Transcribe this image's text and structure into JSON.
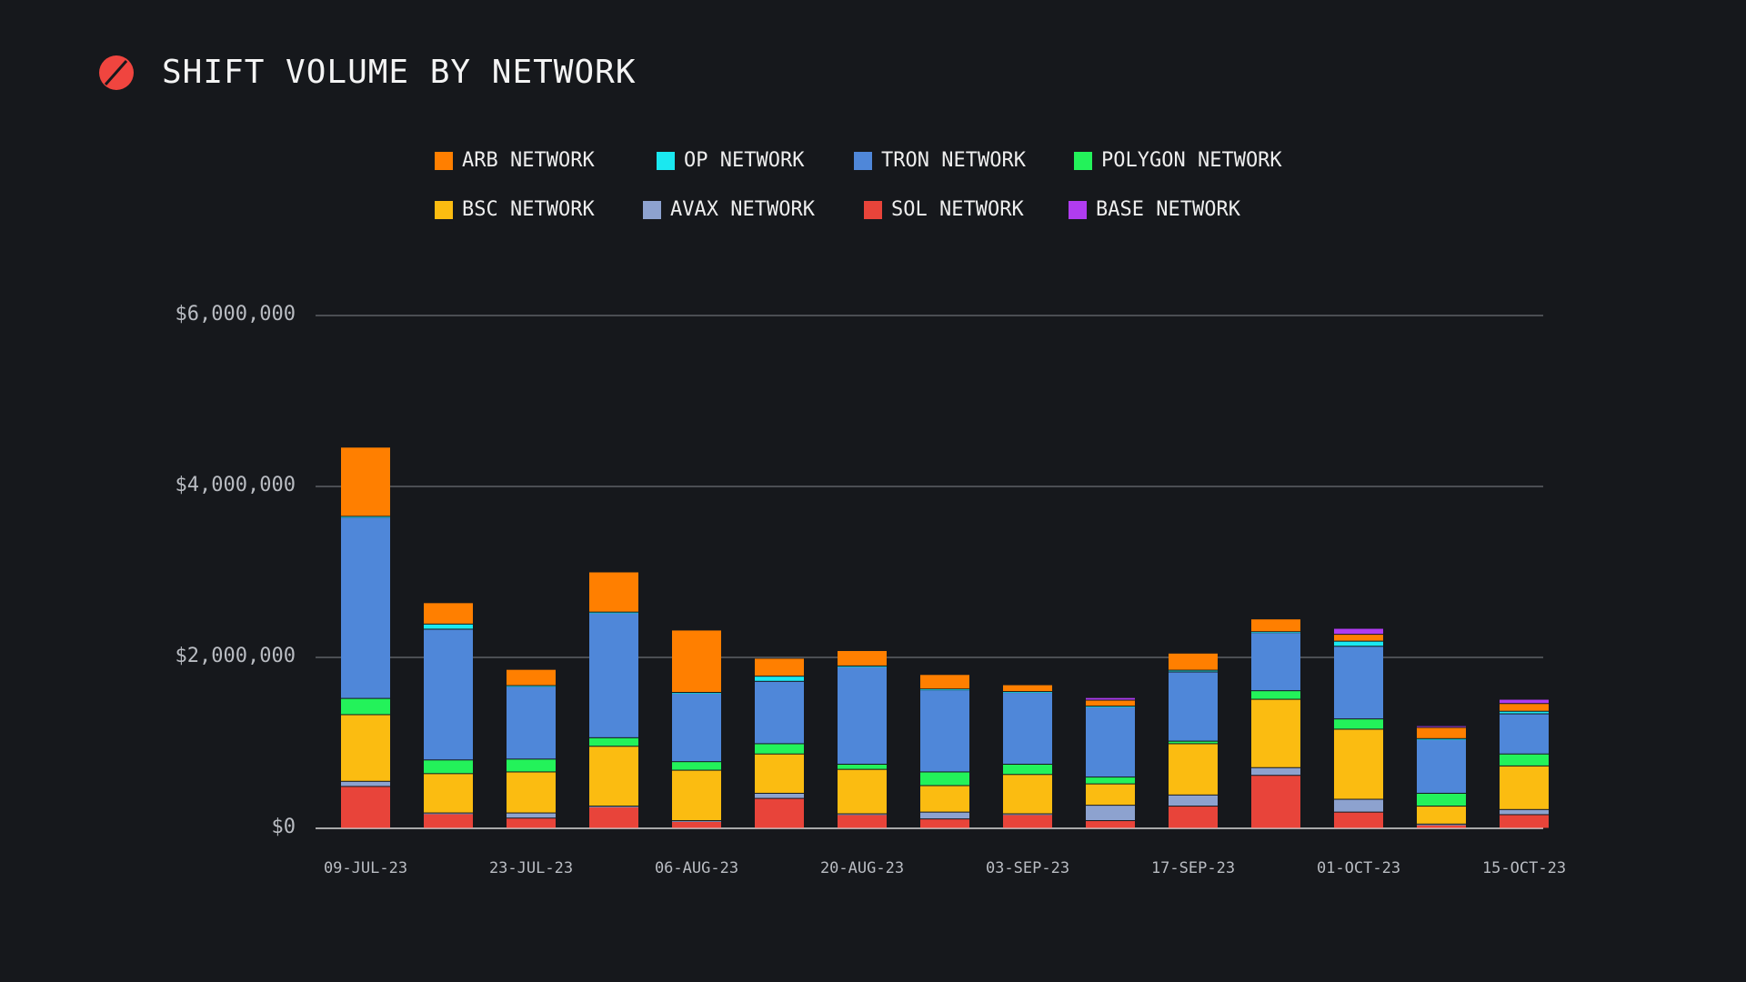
{
  "header": {
    "title": "SHIFT VOLUME BY NETWORK",
    "logo_color": "#f0453f"
  },
  "chart_data": {
    "type": "bar",
    "stacked": true,
    "title": "SHIFT VOLUME BY NETWORK",
    "xlabel": "",
    "ylabel": "",
    "ylim": [
      0,
      6000000
    ],
    "yticks": [
      0,
      2000000,
      4000000,
      6000000
    ],
    "ytick_labels": [
      "$0",
      "$2,000,000",
      "$4,000,000",
      "$6,000,000"
    ],
    "grid": true,
    "legend_position": "top",
    "categories": [
      "09-JUL-23",
      "16-JUL-23",
      "23-JUL-23",
      "30-JUL-23",
      "06-AUG-23",
      "13-AUG-23",
      "20-AUG-23",
      "27-AUG-23",
      "03-SEP-23",
      "10-SEP-23",
      "17-SEP-23",
      "24-SEP-23",
      "01-OCT-23",
      "08-OCT-23",
      "15-OCT-23"
    ],
    "xtick_labels": [
      "09-JUL-23",
      "",
      "23-JUL-23",
      "",
      "06-AUG-23",
      "",
      "20-AUG-23",
      "",
      "03-SEP-23",
      "",
      "17-SEP-23",
      "",
      "01-OCT-23",
      "",
      "15-OCT-23"
    ],
    "series": [
      {
        "name": "SOL NETWORK",
        "color": "#e8443a",
        "values": [
          490000,
          170000,
          120000,
          250000,
          80000,
          350000,
          160000,
          110000,
          160000,
          90000,
          260000,
          620000,
          190000,
          40000,
          160000
        ]
      },
      {
        "name": "AVAX NETWORK",
        "color": "#8da2cf",
        "values": [
          60000,
          10000,
          60000,
          10000,
          10000,
          60000,
          10000,
          80000,
          10000,
          180000,
          130000,
          90000,
          150000,
          10000,
          60000
        ]
      },
      {
        "name": "BSC NETWORK",
        "color": "#fbbc11",
        "values": [
          780000,
          460000,
          480000,
          700000,
          590000,
          460000,
          520000,
          310000,
          460000,
          250000,
          600000,
          800000,
          820000,
          210000,
          510000
        ]
      },
      {
        "name": "POLYGON NETWORK",
        "color": "#23f25a",
        "values": [
          190000,
          160000,
          150000,
          100000,
          100000,
          120000,
          60000,
          160000,
          120000,
          80000,
          30000,
          100000,
          120000,
          150000,
          140000
        ]
      },
      {
        "name": "TRON NETWORK",
        "color": "#4f87d9",
        "values": [
          2120000,
          1530000,
          850000,
          1460000,
          800000,
          730000,
          1140000,
          960000,
          840000,
          820000,
          810000,
          680000,
          850000,
          630000,
          470000
        ]
      },
      {
        "name": "OP NETWORK",
        "color": "#1ae8f0",
        "values": [
          10000,
          60000,
          10000,
          10000,
          10000,
          60000,
          10000,
          10000,
          10000,
          10000,
          20000,
          10000,
          60000,
          10000,
          30000
        ]
      },
      {
        "name": "ARB NETWORK",
        "color": "#ff7f00",
        "values": [
          810000,
          250000,
          190000,
          470000,
          730000,
          210000,
          180000,
          170000,
          80000,
          70000,
          200000,
          150000,
          80000,
          130000,
          90000
        ]
      },
      {
        "name": "BASE NETWORK",
        "color": "#b03cf0",
        "values": [
          0,
          0,
          0,
          0,
          0,
          0,
          0,
          0,
          0,
          30000,
          0,
          0,
          70000,
          20000,
          50000
        ]
      }
    ],
    "legend_order": [
      "ARB NETWORK",
      "OP NETWORK",
      "TRON NETWORK",
      "POLYGON NETWORK",
      "BSC NETWORK",
      "AVAX NETWORK",
      "SOL NETWORK",
      "BASE NETWORK"
    ]
  }
}
